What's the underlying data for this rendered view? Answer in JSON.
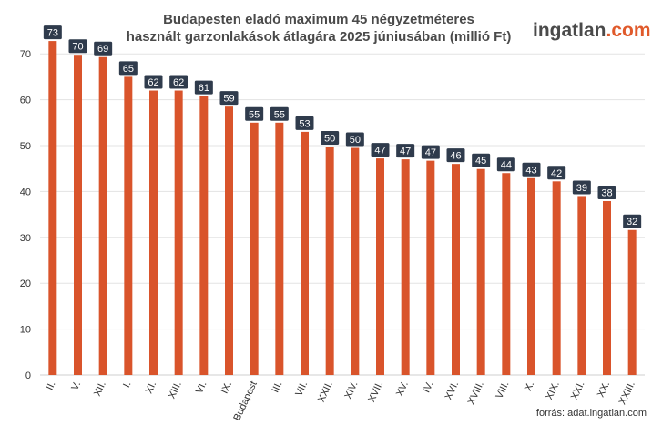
{
  "title_lines": [
    "Budapesten eladó maximum 45 négyzetméteres",
    "használt garzonlakások átlagára 2025 júniusában (millió Ft)"
  ],
  "logo": {
    "part1": "ingatlan",
    "part2": ".com"
  },
  "source": "forrás: adat.ingatlan.com",
  "colors": {
    "bar": "#d9542b",
    "label_bg": "#2f3b4c",
    "label_text": "#ffffff",
    "grid": "#e3e3e3",
    "axis_text": "#333333"
  },
  "chart_data": {
    "type": "bar",
    "title": "Budapesten eladó maximum 45 négyzetméteres használt garzonlakások átlagára 2025 júniusában (millió Ft)",
    "categories": [
      "II.",
      "V.",
      "XII.",
      "I.",
      "XI.",
      "XIII.",
      "VI.",
      "IX.",
      "Budapest",
      "III.",
      "VII.",
      "XXII.",
      "XIV.",
      "XVII.",
      "XV.",
      "IV.",
      "XVI.",
      "XVIII.",
      "VIII.",
      "X.",
      "XIX.",
      "XXI.",
      "XX.",
      "XXIII."
    ],
    "values": [
      72.8,
      69.8,
      69.3,
      65.0,
      62.0,
      62.0,
      60.8,
      58.5,
      55.0,
      55.0,
      53.0,
      49.8,
      49.5,
      47.2,
      47.0,
      46.7,
      46.0,
      44.9,
      44.0,
      42.9,
      42.2,
      39.0,
      37.9,
      31.6
    ],
    "labels": [
      "73",
      "70",
      "69",
      "65",
      "62",
      "62",
      "61",
      "59",
      "55",
      "55",
      "53",
      "50",
      "50",
      "47",
      "47",
      "47",
      "46",
      "45",
      "44",
      "43",
      "42",
      "39",
      "38",
      "32"
    ],
    "y_ticks": [
      0,
      10,
      20,
      30,
      40,
      50,
      60,
      70
    ],
    "ylim": [
      0,
      80
    ],
    "grid": true,
    "legend": "none"
  }
}
